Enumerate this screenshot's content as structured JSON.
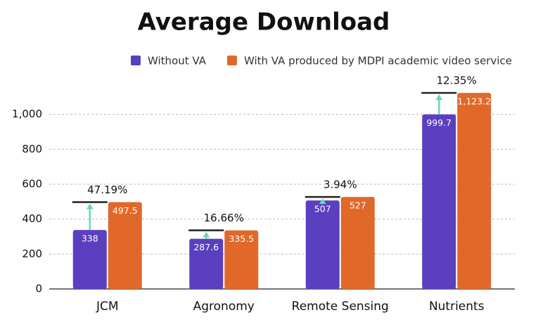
{
  "chart_data": {
    "type": "bar",
    "title": "Average Download",
    "categories": [
      "JCM",
      "Agronomy",
      "Remote Sensing",
      "Nutrients"
    ],
    "series": [
      {
        "name": "Without VA",
        "color": "#5a3fc0",
        "values": [
          338,
          287.6,
          507,
          999.7
        ]
      },
      {
        "name": "With VA produced by MDPI academic video service",
        "color": "#e0692a",
        "values": [
          497.5,
          335.5,
          527,
          1123.2
        ],
        "value_labels": [
          "497.5",
          "335.5",
          "527",
          "1,123.2"
        ]
      }
    ],
    "annotations": [
      "47.19%",
      "16.66%",
      "3.94%",
      "12.35%"
    ],
    "ylim": [
      0,
      1200
    ],
    "yticks": [
      0,
      200,
      400,
      600,
      800,
      {
        "value": 1000,
        "label": "1,000"
      }
    ],
    "grid": true
  }
}
